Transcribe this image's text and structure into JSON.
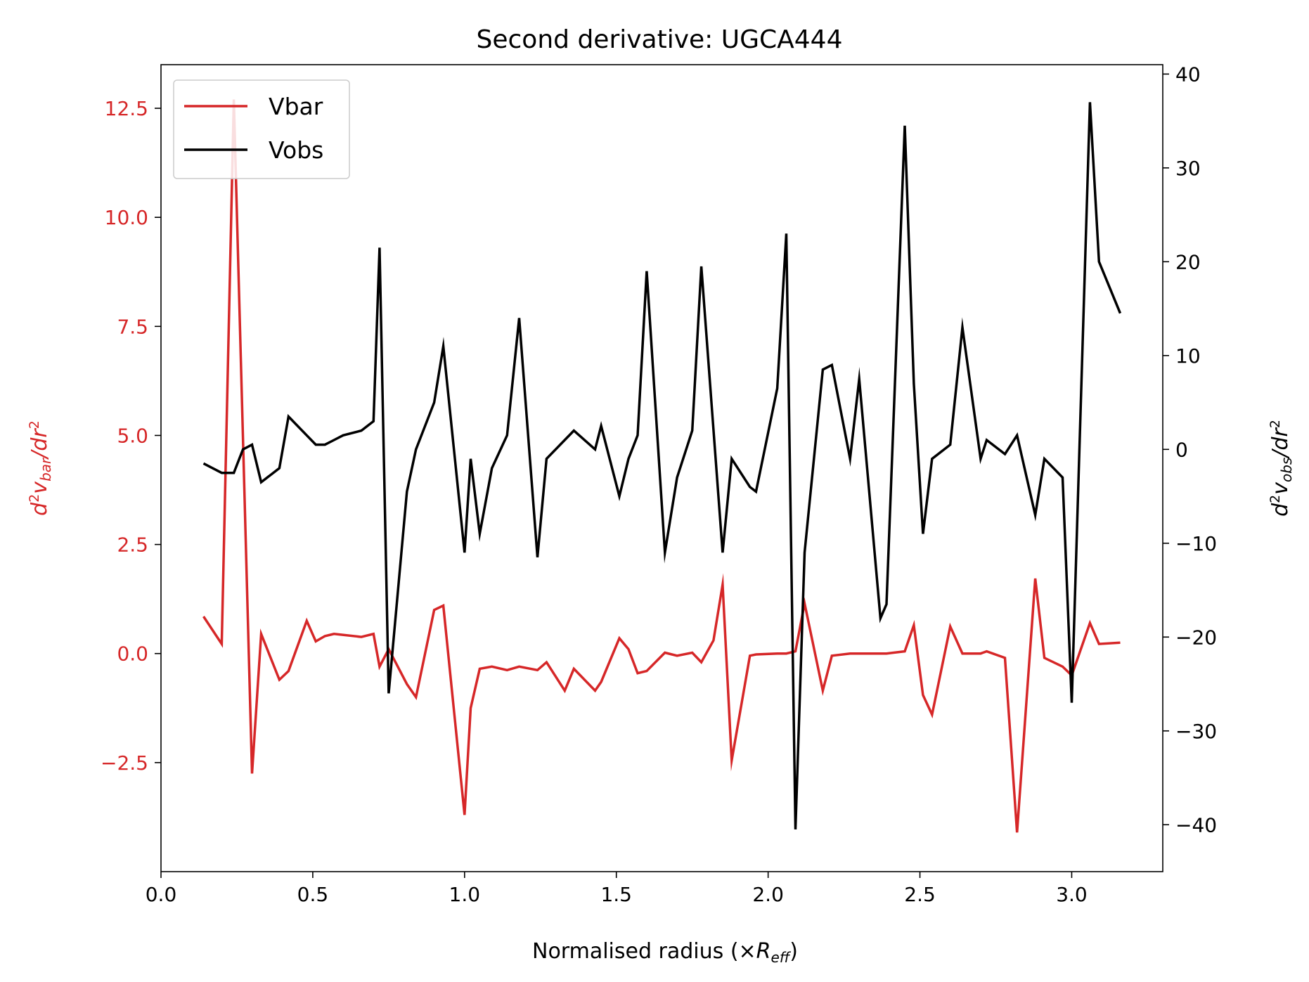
{
  "chart_data": {
    "type": "line",
    "title": "Second derivative: UGCA444",
    "xlabel": "Normalised radius (×R_eff)",
    "xlabel_parts": {
      "prefix": "Normalised radius (×",
      "var": "R",
      "sub": "eff",
      "suffix": ")"
    },
    "ylabel_left": "d^2 v_bar/dr^2",
    "ylabel_left_parts": {
      "d": "d",
      "sup": "2",
      "v": "v",
      "sub": "bar",
      "rest": "/dr",
      "sup2": "2"
    },
    "ylabel_right": "d^2 v_obs/dr^2",
    "ylabel_right_parts": {
      "d": "d",
      "sup": "2",
      "v": "v",
      "sub": "obs",
      "rest": "/dr",
      "sup2": "2"
    },
    "xlim": [
      0,
      3.3
    ],
    "ylim_left": [
      -5.0,
      13.5
    ],
    "ylim_right": [
      -45,
      41
    ],
    "x_ticks": [
      "0.0",
      "0.5",
      "1.0",
      "1.5",
      "2.0",
      "2.5",
      "3.0"
    ],
    "y_left_ticks": [
      "−2.5",
      "0.0",
      "2.5",
      "5.0",
      "7.5",
      "10.0",
      "12.5"
    ],
    "y_right_ticks": [
      "−40",
      "−30",
      "−20",
      "−10",
      "0",
      "10",
      "20",
      "30",
      "40"
    ],
    "legend_position": "upper-left",
    "colors": {
      "Vbar": "#d62728",
      "Vobs": "#000000"
    },
    "series": [
      {
        "name": "Vbar",
        "axis": "left",
        "color": "#d62728",
        "x": [
          0.14,
          0.2,
          0.24,
          0.3,
          0.33,
          0.39,
          0.42,
          0.48,
          0.51,
          0.54,
          0.57,
          0.66,
          0.7,
          0.72,
          0.75,
          0.81,
          0.84,
          0.9,
          0.93,
          1.0,
          1.02,
          1.05,
          1.09,
          1.14,
          1.18,
          1.24,
          1.27,
          1.33,
          1.36,
          1.43,
          1.45,
          1.51,
          1.54,
          1.57,
          1.6,
          1.66,
          1.7,
          1.75,
          1.78,
          1.82,
          1.85,
          1.88,
          1.94,
          1.96,
          2.03,
          2.06,
          2.09,
          2.12,
          2.18,
          2.21,
          2.27,
          2.3,
          2.37,
          2.39,
          2.45,
          2.48,
          2.51,
          2.54,
          2.6,
          2.64,
          2.7,
          2.72,
          2.78,
          2.82,
          2.88,
          2.91,
          2.97,
          3.0,
          3.06,
          3.09,
          3.16
        ],
        "y": [
          0.85,
          0.22,
          12.7,
          -2.75,
          0.45,
          -0.6,
          -0.4,
          0.75,
          0.28,
          0.4,
          0.45,
          0.38,
          0.45,
          -0.3,
          0.1,
          -0.7,
          -1.0,
          1.0,
          1.1,
          -3.7,
          -1.25,
          -0.35,
          -0.3,
          -0.38,
          -0.3,
          -0.38,
          -0.2,
          -0.85,
          -0.35,
          -0.85,
          -0.65,
          0.35,
          0.1,
          -0.45,
          -0.4,
          0.02,
          -0.05,
          0.02,
          -0.2,
          0.3,
          1.58,
          -2.45,
          -0.05,
          -0.02,
          0.0,
          0.0,
          0.05,
          1.15,
          -0.85,
          -0.05,
          0.0,
          0.0,
          0.0,
          0.0,
          0.05,
          0.65,
          -0.95,
          -1.4,
          0.62,
          0.0,
          0.0,
          0.05,
          -0.1,
          -4.1,
          1.72,
          -0.1,
          -0.3,
          -0.5,
          0.7,
          0.22,
          0.25
        ]
      },
      {
        "name": "Vobs",
        "axis": "right",
        "color": "#000000",
        "x": [
          0.14,
          0.2,
          0.24,
          0.27,
          0.3,
          0.33,
          0.39,
          0.42,
          0.48,
          0.51,
          0.54,
          0.57,
          0.6,
          0.66,
          0.7,
          0.72,
          0.75,
          0.81,
          0.84,
          0.9,
          0.93,
          1.0,
          1.02,
          1.05,
          1.09,
          1.14,
          1.18,
          1.24,
          1.27,
          1.33,
          1.36,
          1.43,
          1.45,
          1.51,
          1.54,
          1.57,
          1.6,
          1.66,
          1.7,
          1.75,
          1.78,
          1.85,
          1.88,
          1.94,
          1.96,
          2.03,
          2.06,
          2.09,
          2.12,
          2.18,
          2.21,
          2.27,
          2.3,
          2.37,
          2.39,
          2.45,
          2.48,
          2.51,
          2.54,
          2.6,
          2.64,
          2.7,
          2.72,
          2.78,
          2.82,
          2.88,
          2.91,
          2.97,
          3.0,
          3.06,
          3.09,
          3.16
        ],
        "y": [
          -1.5,
          -2.5,
          -2.5,
          0.0,
          0.5,
          -3.5,
          -2.0,
          3.5,
          1.5,
          0.5,
          0.5,
          1.0,
          1.5,
          2.0,
          3.0,
          21.5,
          -26.0,
          -4.5,
          0.0,
          5.0,
          11.0,
          -11.0,
          -1.0,
          -9.0,
          -2.0,
          1.5,
          14.0,
          -11.5,
          -1.0,
          1.0,
          2.0,
          0.0,
          2.5,
          -5.0,
          -1.0,
          1.5,
          19.0,
          -11.0,
          -3.0,
          2.0,
          19.5,
          -11.0,
          -1.0,
          -4.0,
          -4.5,
          6.5,
          23.0,
          -40.5,
          -11.0,
          8.5,
          9.0,
          -1.0,
          7.5,
          -18.0,
          -16.5,
          34.5,
          7.0,
          -9.0,
          -1.0,
          0.5,
          13.0,
          -1.0,
          1.0,
          -0.5,
          1.5,
          -7.0,
          -1.0,
          -3.0,
          -27.0,
          37.0,
          20.0,
          14.5
        ]
      }
    ]
  }
}
